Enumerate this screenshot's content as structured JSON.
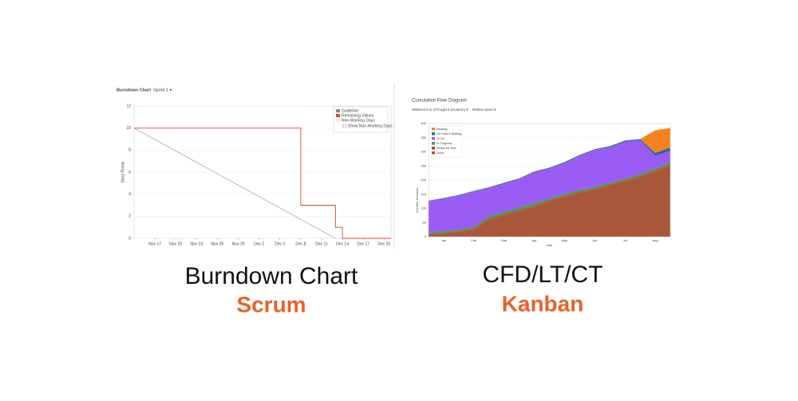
{
  "chart_data": [
    {
      "type": "line",
      "title": "Burndown Chart",
      "selector": "Sprint 1 ▾",
      "y_label": "Story Points",
      "xlim": [
        "Nov 14",
        "Dec 21"
      ],
      "xticks": [
        "Nov 17",
        "Nov 20",
        "Nov 23",
        "Nov 26",
        "Nov 29",
        "Dec 2",
        "Dec 5",
        "Dec 8",
        "Dec 11",
        "Dec 14",
        "Dec 17",
        "Dec 20"
      ],
      "ylim": [
        0,
        12
      ],
      "yticks": [
        0,
        2,
        4,
        6,
        8,
        10,
        12
      ],
      "series": [
        {
          "name": "Guideline",
          "color": "#8c8c8c",
          "x": [
            "Nov 14",
            "Dec 13"
          ],
          "values": [
            10,
            0
          ]
        },
        {
          "name": "Remaining Values",
          "color": "#d9453a",
          "x": [
            "Nov 14",
            "Dec 8",
            "Dec 8",
            "Dec 13",
            "Dec 13",
            "Dec 14",
            "Dec 14",
            "Dec 21"
          ],
          "values": [
            10,
            10,
            3,
            3,
            1,
            1,
            0,
            0
          ]
        }
      ],
      "non_working_days": {
        "name": "Non-Working Days",
        "color": "#fbe3e6"
      },
      "toggle": "Show Non-Working Days"
    },
    {
      "type": "area",
      "title": "Cumulative Flow Diagram",
      "selector": "30/Dec/13 to 27/Aug/14 (Custom) ▾",
      "refine": "Refine report ▾",
      "y_label": "Number of issues",
      "x_label": "Date",
      "categories": [
        null,
        "Jan",
        null,
        "Feb",
        null,
        "Mar",
        null,
        "Apr",
        null,
        "May",
        null,
        "Jun",
        null,
        "Jul",
        null,
        "Aug",
        null
      ],
      "ylim": [
        0,
        400
      ],
      "yticks": [
        0,
        50,
        100,
        150,
        200,
        250,
        300,
        350,
        400
      ],
      "series": [
        {
          "name": "Backlog",
          "color": "#f5821f",
          "values": [
            0,
            0,
            0,
            0,
            0,
            0,
            0,
            0,
            0,
            0,
            0,
            0,
            0,
            0,
            0,
            80,
            70
          ]
        },
        {
          "name": "On Hold & Waiting",
          "color": "#2f62a8",
          "values": [
            2,
            2,
            2,
            2,
            2,
            3,
            3,
            3,
            3,
            3,
            3,
            3,
            4,
            4,
            4,
            10,
            12
          ]
        },
        {
          "name": "To Do",
          "color": "#9b5cf6",
          "values": [
            110,
            115,
            120,
            125,
            100,
            100,
            100,
            110,
            105,
            110,
            120,
            130,
            125,
            130,
            120,
            45,
            40
          ]
        },
        {
          "name": "In Progress",
          "color": "#4e9a4a",
          "values": [
            5,
            6,
            6,
            8,
            10,
            10,
            10,
            10,
            8,
            8,
            8,
            8,
            8,
            8,
            8,
            8,
            10
          ]
        },
        {
          "name": "Ready for Test",
          "color": "#d62f2f",
          "values": [
            2,
            2,
            2,
            2,
            3,
            3,
            3,
            3,
            3,
            3,
            3,
            3,
            3,
            3,
            3,
            3,
            3
          ]
        },
        {
          "name": "Done",
          "color": "#a9573a",
          "values": [
            8,
            12,
            18,
            25,
            60,
            75,
            90,
            105,
            125,
            140,
            155,
            165,
            180,
            195,
            210,
            230,
            250
          ]
        }
      ]
    }
  ],
  "captions": [
    {
      "title": "Burndown Chart",
      "subtitle": "Scrum"
    },
    {
      "title": "CFD/LT/CT",
      "subtitle": "Kanban"
    }
  ]
}
